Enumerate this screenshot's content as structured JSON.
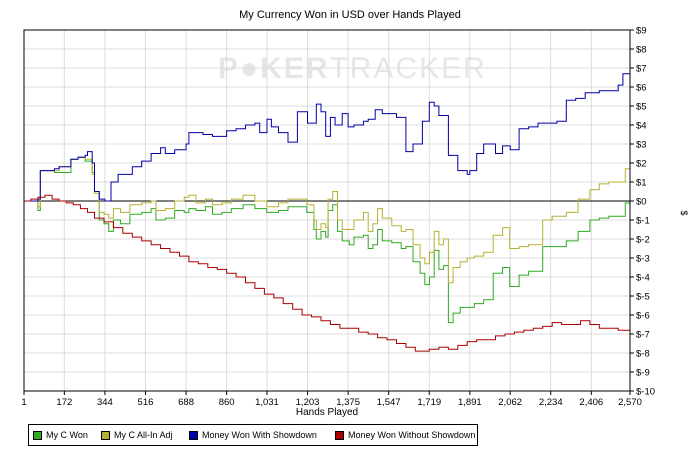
{
  "chart_data": {
    "type": "line",
    "title": "My Currency Won in USD over Hands Played",
    "watermark": {
      "left": "P",
      "mid": "KER",
      "right": "TRACKER"
    },
    "xlabel": "Hands Played",
    "ylabel": "$",
    "xlim": [
      1,
      2570
    ],
    "ylim": [
      -10,
      9
    ],
    "x_ticks": [
      "1",
      "172",
      "344",
      "516",
      "688",
      "860",
      "1,031",
      "1,203",
      "1,375",
      "1,547",
      "1,719",
      "1,891",
      "2,062",
      "2,234",
      "2,406",
      "2,570"
    ],
    "x_tick_values": [
      1,
      172,
      344,
      516,
      688,
      860,
      1031,
      1203,
      1375,
      1547,
      1719,
      1891,
      2062,
      2234,
      2406,
      2570
    ],
    "y_ticks": [
      "$9",
      "$8",
      "$7",
      "$6",
      "$5",
      "$4",
      "$3",
      "$2",
      "$1",
      "$0",
      "$-1",
      "$-2",
      "$-3",
      "$-4",
      "$-5",
      "$-6",
      "$-7",
      "$-8",
      "$-9",
      "$-10"
    ],
    "y_tick_values": [
      9,
      8,
      7,
      6,
      5,
      4,
      3,
      2,
      1,
      0,
      -1,
      -2,
      -3,
      -4,
      -5,
      -6,
      -7,
      -8,
      -9,
      -10
    ],
    "grid": true,
    "legend_position": "bottom-left",
    "series": [
      {
        "name": "My C Won",
        "color": "#2faa22",
        "x": [
          1,
          60,
          70,
          100,
          130,
          150,
          200,
          230,
          260,
          290,
          300,
          320,
          340,
          360,
          380,
          410,
          450,
          500,
          540,
          560,
          600,
          640,
          680,
          700,
          730,
          770,
          800,
          840,
          880,
          930,
          980,
          1030,
          1080,
          1120,
          1160,
          1200,
          1230,
          1240,
          1260,
          1280,
          1290,
          1310,
          1330,
          1350,
          1380,
          1400,
          1440,
          1460,
          1480,
          1500,
          1520,
          1560,
          1600,
          1620,
          1650,
          1680,
          1700,
          1720,
          1740,
          1760,
          1780,
          1800,
          1820,
          1850,
          1880,
          1910,
          1950,
          1990,
          2030,
          2060,
          2100,
          2140,
          2200,
          2240,
          2300,
          2350,
          2400,
          2440,
          2480,
          2520,
          2550,
          2570
        ],
        "y": [
          0,
          -0.5,
          1.6,
          1.6,
          1.5,
          1.5,
          2.2,
          2.3,
          2.1,
          1.5,
          0.5,
          -1.0,
          -1.2,
          -1.6,
          -1.0,
          -1.2,
          -0.7,
          -0.6,
          -0.4,
          -1.0,
          -0.9,
          -0.5,
          -0.6,
          -0.4,
          -0.5,
          -0.3,
          -0.7,
          -0.6,
          -0.4,
          -0.2,
          -0.4,
          -0.6,
          -0.5,
          -0.3,
          -0.3,
          -0.6,
          -1.5,
          -2.0,
          -1.6,
          -1.9,
          -0.5,
          -0.2,
          -1.6,
          -2.1,
          -2.3,
          -1.9,
          -1.8,
          -2.5,
          -2.3,
          -1.5,
          -2.1,
          -2.2,
          -2.5,
          -2.4,
          -3.2,
          -3.8,
          -4.4,
          -4.0,
          -2.6,
          -3.6,
          -3.4,
          -6.4,
          -5.9,
          -5.6,
          -5.6,
          -5.4,
          -5.2,
          -3.8,
          -3.5,
          -4.5,
          -3.9,
          -3.7,
          -2.4,
          -2.4,
          -2.1,
          -1.6,
          -1.0,
          -0.9,
          -0.8,
          -0.8,
          -0.1,
          -0.4
        ]
      },
      {
        "name": "My C All-In Adj",
        "color": "#b7b033",
        "x": [
          1,
          60,
          70,
          100,
          130,
          150,
          200,
          230,
          260,
          290,
          300,
          320,
          340,
          360,
          380,
          410,
          450,
          500,
          540,
          560,
          600,
          640,
          680,
          700,
          730,
          770,
          800,
          840,
          880,
          930,
          980,
          1030,
          1080,
          1120,
          1160,
          1200,
          1230,
          1240,
          1260,
          1280,
          1290,
          1310,
          1330,
          1350,
          1380,
          1400,
          1440,
          1460,
          1480,
          1500,
          1520,
          1560,
          1600,
          1620,
          1650,
          1680,
          1700,
          1720,
          1740,
          1760,
          1780,
          1800,
          1820,
          1850,
          1880,
          1910,
          1950,
          1990,
          2030,
          2060,
          2100,
          2140,
          2200,
          2240,
          2300,
          2350,
          2400,
          2440,
          2480,
          2520,
          2550,
          2570
        ],
        "y": [
          0,
          -0.3,
          1.6,
          1.6,
          1.6,
          1.8,
          2.2,
          2.3,
          2.2,
          1.4,
          0.4,
          -0.6,
          -0.7,
          -0.9,
          -0.4,
          -0.6,
          -0.2,
          -0.1,
          0,
          -0.5,
          -0.4,
          0,
          0.2,
          0.3,
          -0.1,
          0.1,
          -0.2,
          -0.1,
          0.1,
          0.3,
          0,
          -0.3,
          -0.1,
          0.1,
          0.1,
          -0.2,
          -1.0,
          -1.5,
          -1.2,
          -1.4,
          0.1,
          0.5,
          -1.0,
          -1.5,
          -1.5,
          -1.0,
          -0.6,
          -1.6,
          -1.2,
          -0.4,
          -0.9,
          -1.3,
          -1.6,
          -1.5,
          -2.3,
          -3.0,
          -3.3,
          -2.7,
          -1.6,
          -2.3,
          -2.0,
          -4.3,
          -3.5,
          -3.2,
          -3.0,
          -2.9,
          -2.7,
          -1.8,
          -1.4,
          -2.5,
          -2.4,
          -2.3,
          -1.0,
          -0.8,
          -0.6,
          0.1,
          0.6,
          0.9,
          1.0,
          1.0,
          1.7,
          0.8
        ]
      },
      {
        "name": "Money Won With Showdown",
        "color": "#0000a8",
        "x": [
          1,
          60,
          70,
          100,
          130,
          150,
          200,
          230,
          260,
          270,
          290,
          300,
          320,
          344,
          370,
          400,
          430,
          460,
          500,
          540,
          580,
          600,
          640,
          688,
          700,
          760,
          800,
          860,
          900,
          940,
          980,
          1000,
          1031,
          1050,
          1080,
          1120,
          1160,
          1203,
          1240,
          1260,
          1280,
          1300,
          1320,
          1350,
          1375,
          1400,
          1440,
          1460,
          1490,
          1520,
          1547,
          1580,
          1620,
          1650,
          1690,
          1719,
          1740,
          1760,
          1780,
          1800,
          1840,
          1880,
          1891,
          1920,
          1950,
          2000,
          2030,
          2062,
          2100,
          2140,
          2180,
          2234,
          2260,
          2300,
          2340,
          2380,
          2406,
          2440,
          2480,
          2520,
          2540,
          2570
        ],
        "y": [
          0,
          0.1,
          1.6,
          1.6,
          1.7,
          1.8,
          2.2,
          2.3,
          2.4,
          2.6,
          2.0,
          0.5,
          0.1,
          0,
          1.0,
          1.4,
          1.4,
          1.8,
          2.1,
          2.5,
          2.8,
          2.5,
          2.7,
          3.0,
          3.6,
          3.5,
          3.4,
          3.7,
          3.8,
          4.0,
          4.1,
          3.6,
          4.3,
          3.9,
          3.6,
          3.1,
          4.7,
          4.1,
          5.1,
          4.7,
          3.4,
          4.4,
          4.0,
          4.6,
          3.9,
          4.0,
          4.2,
          4.3,
          4.8,
          4.6,
          4.6,
          4.4,
          2.6,
          3.0,
          4.2,
          5.2,
          5.0,
          4.5,
          4.5,
          2.4,
          1.6,
          1.4,
          1.6,
          2.5,
          3.0,
          2.5,
          2.9,
          2.7,
          3.8,
          3.9,
          4.1,
          4.1,
          4.2,
          5.3,
          5.4,
          5.7,
          5.7,
          5.8,
          5.8,
          6.1,
          6.7,
          6.6
        ]
      },
      {
        "name": "Money Won Without Showdown",
        "color": "#a80000",
        "x": [
          1,
          30,
          60,
          90,
          120,
          150,
          180,
          210,
          240,
          270,
          300,
          340,
          380,
          420,
          460,
          500,
          540,
          580,
          620,
          660,
          700,
          740,
          780,
          820,
          860,
          900,
          940,
          980,
          1020,
          1060,
          1100,
          1140,
          1180,
          1220,
          1260,
          1300,
          1340,
          1380,
          1420,
          1460,
          1500,
          1540,
          1580,
          1620,
          1660,
          1700,
          1719,
          1760,
          1800,
          1840,
          1880,
          1920,
          1960,
          2000,
          2040,
          2080,
          2120,
          2160,
          2200,
          2240,
          2280,
          2320,
          2360,
          2400,
          2440,
          2480,
          2520,
          2570
        ],
        "y": [
          0,
          0.1,
          0.2,
          0.3,
          0.1,
          0.0,
          -0.1,
          -0.2,
          -0.4,
          -0.6,
          -0.9,
          -1.1,
          -1.4,
          -1.7,
          -1.9,
          -2.1,
          -2.3,
          -2.5,
          -2.7,
          -2.9,
          -3.2,
          -3.3,
          -3.5,
          -3.6,
          -3.8,
          -4.0,
          -4.3,
          -4.6,
          -4.9,
          -5.1,
          -5.4,
          -5.7,
          -6.0,
          -6.1,
          -6.3,
          -6.5,
          -6.7,
          -6.7,
          -6.9,
          -7.0,
          -7.2,
          -7.3,
          -7.5,
          -7.7,
          -7.9,
          -7.9,
          -7.8,
          -7.7,
          -7.8,
          -7.6,
          -7.4,
          -7.3,
          -7.3,
          -7.1,
          -7.0,
          -6.9,
          -6.8,
          -6.7,
          -6.6,
          -6.4,
          -6.5,
          -6.5,
          -6.3,
          -6.5,
          -6.7,
          -6.7,
          -6.8,
          -6.9
        ]
      }
    ]
  }
}
